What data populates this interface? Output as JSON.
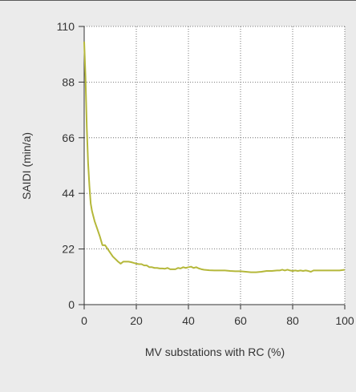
{
  "chart_data": {
    "type": "line",
    "xlabel": "MV substations with RC (%)",
    "ylabel": "SAIDI (min/a)",
    "xlim": [
      0,
      100
    ],
    "ylim": [
      0,
      110
    ],
    "x_ticks": [
      0,
      20,
      40,
      60,
      80,
      100
    ],
    "y_ticks": [
      0,
      22,
      44,
      66,
      88,
      110
    ],
    "x_tick_labels": [
      "0",
      "20",
      "40",
      "60",
      "80",
      "100"
    ],
    "y_tick_labels": [
      "0",
      "22",
      "44",
      "66",
      "88",
      "110"
    ],
    "grid": "dotted",
    "series": [
      {
        "color": "#b5b83a",
        "x": [
          0,
          0.5,
          1,
          1.5,
          2,
          2.5,
          3,
          4,
          5,
          6,
          7,
          8,
          9,
          10,
          11,
          12,
          13,
          14,
          15,
          16,
          17,
          18,
          19,
          20,
          21,
          22,
          23,
          24,
          25,
          26,
          27,
          28,
          29,
          30,
          31,
          32,
          33,
          34,
          35,
          36,
          37,
          38,
          39,
          40,
          41,
          42,
          43,
          44,
          45,
          46,
          48,
          50,
          52,
          54,
          56,
          58,
          60,
          62,
          64,
          66,
          68,
          70,
          72,
          74,
          75,
          76,
          77,
          78,
          79,
          80,
          81,
          82,
          83,
          84,
          85,
          86,
          87,
          88,
          90,
          92,
          94,
          96,
          98,
          100
        ],
        "y": [
          104,
          90,
          70,
          56,
          47,
          40,
          37,
          33,
          30,
          27,
          23.5,
          23.5,
          22,
          20.5,
          19,
          18,
          17,
          16.2,
          17,
          17,
          17,
          16.8,
          16.5,
          16.2,
          16,
          16,
          15.5,
          15.5,
          14.8,
          14.8,
          14.5,
          14.5,
          14.3,
          14.3,
          14.2,
          14.5,
          14,
          14,
          14,
          14.5,
          14.3,
          14.8,
          14.5,
          14.8,
          15,
          14.5,
          14.8,
          14.3,
          14,
          13.8,
          13.6,
          13.5,
          13.5,
          13.5,
          13.3,
          13.2,
          13.2,
          13,
          12.8,
          12.8,
          13,
          13.3,
          13.3,
          13.5,
          13.5,
          13.8,
          13.5,
          13.8,
          13.5,
          13.3,
          13.5,
          13.3,
          13.5,
          13.3,
          13.5,
          13.3,
          13,
          13.5,
          13.5,
          13.5,
          13.5,
          13.5,
          13.5,
          13.8
        ]
      }
    ]
  }
}
